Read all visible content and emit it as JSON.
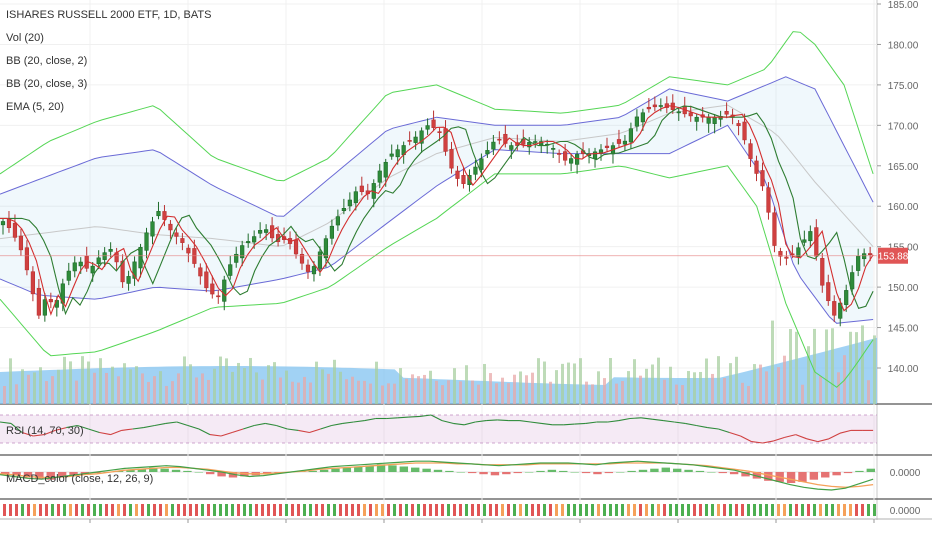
{
  "chart_data": {
    "type": "candlestick",
    "title": "ISHARES RUSSELL 2000 ETF, 1D, BATS",
    "indicators": [
      "Vol (20)",
      "BB (20, close, 2)",
      "BB (20, close, 3)",
      "EMA (5, 20)"
    ],
    "last_price_label": "153.88",
    "last_price": 153.88,
    "price_ticks": [
      "185.00",
      "180.00",
      "175.00",
      "170.00",
      "165.00",
      "160.00",
      "155.00",
      "150.00",
      "145.00",
      "140.00"
    ],
    "ylim": [
      136,
      186
    ],
    "close_path": [
      [
        0,
        158.5
      ],
      [
        6,
        157
      ],
      [
        12,
        154
      ],
      [
        16,
        150
      ],
      [
        20,
        146.5
      ],
      [
        24,
        149
      ],
      [
        28,
        147.5
      ],
      [
        34,
        151.5
      ],
      [
        40,
        153.5
      ],
      [
        46,
        152
      ],
      [
        52,
        154
      ],
      [
        58,
        154.8
      ],
      [
        64,
        150
      ],
      [
        70,
        153.5
      ],
      [
        76,
        157
      ],
      [
        82,
        159.5
      ],
      [
        88,
        157
      ],
      [
        94,
        155.5
      ],
      [
        100,
        153
      ],
      [
        106,
        150
      ],
      [
        112,
        148.5
      ],
      [
        118,
        152.5
      ],
      [
        124,
        155
      ],
      [
        130,
        156
      ],
      [
        136,
        157.5
      ],
      [
        142,
        155.5
      ],
      [
        148,
        156
      ],
      [
        154,
        153.5
      ],
      [
        160,
        151.5
      ],
      [
        166,
        155
      ],
      [
        172,
        158
      ],
      [
        178,
        160
      ],
      [
        184,
        162
      ],
      [
        190,
        161.5
      ],
      [
        196,
        164.5
      ],
      [
        202,
        166.5
      ],
      [
        208,
        167.5
      ],
      [
        214,
        168.5
      ],
      [
        220,
        170
      ],
      [
        226,
        169.5
      ],
      [
        232,
        165
      ],
      [
        238,
        162.5
      ],
      [
        244,
        164.5
      ],
      [
        250,
        166.5
      ],
      [
        256,
        168.5
      ],
      [
        262,
        167.5
      ],
      [
        268,
        167.5
      ],
      [
        274,
        168
      ],
      [
        280,
        168
      ],
      [
        286,
        167
      ],
      [
        292,
        165.5
      ],
      [
        298,
        166.5
      ],
      [
        304,
        166.5
      ],
      [
        310,
        167
      ],
      [
        316,
        167.5
      ],
      [
        322,
        168
      ],
      [
        328,
        171
      ],
      [
        334,
        172
      ],
      [
        340,
        172.5
      ],
      [
        346,
        172
      ],
      [
        352,
        171.5
      ],
      [
        358,
        171
      ],
      [
        364,
        171
      ],
      [
        370,
        171
      ],
      [
        376,
        171.5
      ],
      [
        382,
        169.5
      ],
      [
        388,
        165
      ],
      [
        394,
        162
      ],
      [
        400,
        154
      ],
      [
        406,
        153.5
      ],
      [
        412,
        155
      ],
      [
        418,
        157
      ],
      [
        424,
        150
      ],
      [
        430,
        146.5
      ],
      [
        436,
        149.5
      ],
      [
        442,
        153.8
      ],
      [
        446,
        154.2
      ],
      [
        450,
        153.88
      ]
    ],
    "candle_count": 146,
    "bb2": {
      "upper": [
        [
          0,
          161.5
        ],
        [
          50,
          166
        ],
        [
          80,
          167
        ],
        [
          110,
          162.5
        ],
        [
          145,
          158.5
        ],
        [
          170,
          163.5
        ],
        [
          200,
          169.5
        ],
        [
          225,
          171
        ],
        [
          255,
          170
        ],
        [
          290,
          170
        ],
        [
          320,
          171
        ],
        [
          345,
          174.5
        ],
        [
          375,
          173
        ],
        [
          385,
          174
        ],
        [
          405,
          176
        ],
        [
          420,
          174.5
        ],
        [
          450,
          160.5
        ]
      ],
      "middle": [
        [
          0,
          156
        ],
        [
          50,
          157.5
        ],
        [
          80,
          156.5
        ],
        [
          110,
          156
        ],
        [
          145,
          155
        ],
        [
          170,
          158
        ],
        [
          200,
          163.5
        ],
        [
          225,
          166.5
        ],
        [
          255,
          168.5
        ],
        [
          290,
          168
        ],
        [
          320,
          169
        ],
        [
          345,
          171.5
        ],
        [
          375,
          172.5
        ],
        [
          400,
          169
        ],
        [
          420,
          163
        ],
        [
          450,
          155
        ]
      ],
      "lower": [
        [
          0,
          151
        ],
        [
          20,
          149
        ],
        [
          50,
          148.5
        ],
        [
          80,
          150
        ],
        [
          110,
          149.5
        ],
        [
          145,
          151
        ],
        [
          170,
          152.5
        ],
        [
          200,
          158
        ],
        [
          225,
          162.5
        ],
        [
          255,
          167
        ],
        [
          290,
          166.5
        ],
        [
          320,
          166.5
        ],
        [
          345,
          166.5
        ],
        [
          375,
          170
        ],
        [
          395,
          163
        ],
        [
          410,
          152
        ],
        [
          430,
          145.5
        ],
        [
          450,
          146
        ]
      ]
    },
    "bb3": {
      "upper": [
        [
          0,
          164
        ],
        [
          25,
          168
        ],
        [
          50,
          170.5
        ],
        [
          80,
          172.5
        ],
        [
          110,
          166
        ],
        [
          145,
          163
        ],
        [
          170,
          166
        ],
        [
          200,
          174
        ],
        [
          225,
          175
        ],
        [
          255,
          172
        ],
        [
          290,
          171.5
        ],
        [
          320,
          172.5
        ],
        [
          345,
          176
        ],
        [
          375,
          175
        ],
        [
          395,
          177
        ],
        [
          410,
          182
        ],
        [
          420,
          180
        ],
        [
          435,
          175
        ],
        [
          450,
          164
        ]
      ],
      "lower": [
        [
          0,
          148.5
        ],
        [
          25,
          141.5
        ],
        [
          50,
          142
        ],
        [
          80,
          144.5
        ],
        [
          110,
          147.5
        ],
        [
          145,
          148
        ],
        [
          170,
          150
        ],
        [
          200,
          155
        ],
        [
          225,
          158.5
        ],
        [
          255,
          164
        ],
        [
          290,
          164
        ],
        [
          320,
          165
        ],
        [
          345,
          163.5
        ],
        [
          375,
          165
        ],
        [
          390,
          160
        ],
        [
          405,
          148
        ],
        [
          420,
          139.5
        ],
        [
          432,
          137.5
        ],
        [
          440,
          140
        ],
        [
          450,
          143.5
        ]
      ]
    },
    "ema_fast": {
      "series_color": "#d32f2f"
    },
    "ema_slow": {
      "series_color": "#2e7d32"
    },
    "volume": {
      "label": "Vol (20)",
      "bar_color_up": "#a8cfa0",
      "bar_color_down": "#e8a8a8",
      "ma_fill": "#82c3f0"
    },
    "rsi": {
      "label": "RSI (14, 70, 30)",
      "values": [
        60,
        58,
        45,
        40,
        42,
        48,
        52,
        55,
        50,
        45,
        42,
        48,
        50,
        52,
        55,
        58,
        60,
        55,
        50,
        42,
        40,
        45,
        50,
        55,
        58,
        55,
        50,
        48,
        45,
        50,
        55,
        58,
        60,
        62,
        65,
        65,
        66,
        67,
        68,
        70,
        62,
        58,
        56,
        60,
        62,
        63,
        62,
        62,
        60,
        58,
        56,
        56,
        57,
        58,
        60,
        60,
        62,
        65,
        66,
        64,
        62,
        60,
        58,
        55,
        52,
        50,
        45,
        40,
        32,
        30,
        33,
        38,
        42,
        36,
        32,
        36,
        44,
        48,
        48,
        48
      ]
    },
    "macd": {
      "label": "MACD_color (close, 12, 26, 9)",
      "tick_label": "0.0000",
      "hist": [
        -2,
        -3,
        -5,
        -6,
        -7,
        -5,
        -3,
        -2,
        -1,
        0,
        1,
        2,
        3,
        4,
        3,
        2,
        1,
        0,
        -2,
        -4,
        -5,
        -4,
        -3,
        -2,
        -1,
        0,
        1,
        1,
        2,
        3,
        4,
        5,
        6,
        7,
        6,
        5,
        4,
        3,
        2,
        1,
        0,
        -1,
        -2,
        -3,
        -2,
        -1,
        0,
        1,
        2,
        1,
        0,
        -1,
        -2,
        -1,
        0,
        1,
        2,
        3,
        4,
        3,
        2,
        1,
        0,
        -1,
        -2,
        -4,
        -6,
        -8,
        -9,
        -10,
        -9,
        -7,
        -5,
        -3,
        -1,
        1,
        3
      ],
      "macd_line": [
        -3,
        -5,
        -7,
        -8,
        -6,
        -4,
        -2,
        0,
        2,
        4,
        5,
        6,
        7,
        6,
        4,
        2,
        0,
        -3,
        -5,
        -4,
        -2,
        0,
        2,
        4,
        6,
        7,
        8,
        9,
        10,
        11,
        12,
        12,
        11,
        10,
        9,
        8,
        7,
        8,
        9,
        10,
        10,
        10,
        9,
        8,
        10,
        11,
        12,
        11,
        10,
        9,
        8,
        6,
        4,
        2,
        -2,
        -6,
        -10,
        -14,
        -17,
        -19,
        -20,
        -18,
        -13,
        -8
      ],
      "signal_line": [
        -2,
        -3,
        -5,
        -6,
        -6,
        -5,
        -3,
        -2,
        0,
        2,
        3,
        4,
        5,
        5,
        4,
        3,
        1,
        -1,
        -2,
        -2,
        -1,
        0,
        1,
        3,
        4,
        5,
        6,
        7,
        8,
        9,
        10,
        10,
        10,
        9,
        9,
        8,
        8,
        8,
        8,
        9,
        9,
        9,
        9,
        9,
        9,
        10,
        10,
        10,
        10,
        9,
        8,
        7,
        5,
        3,
        1,
        -2,
        -5,
        -8,
        -11,
        -14,
        -16,
        -17,
        -16,
        -14
      ]
    },
    "bottom_strip": {
      "label": "0.0000"
    },
    "grid": true
  }
}
